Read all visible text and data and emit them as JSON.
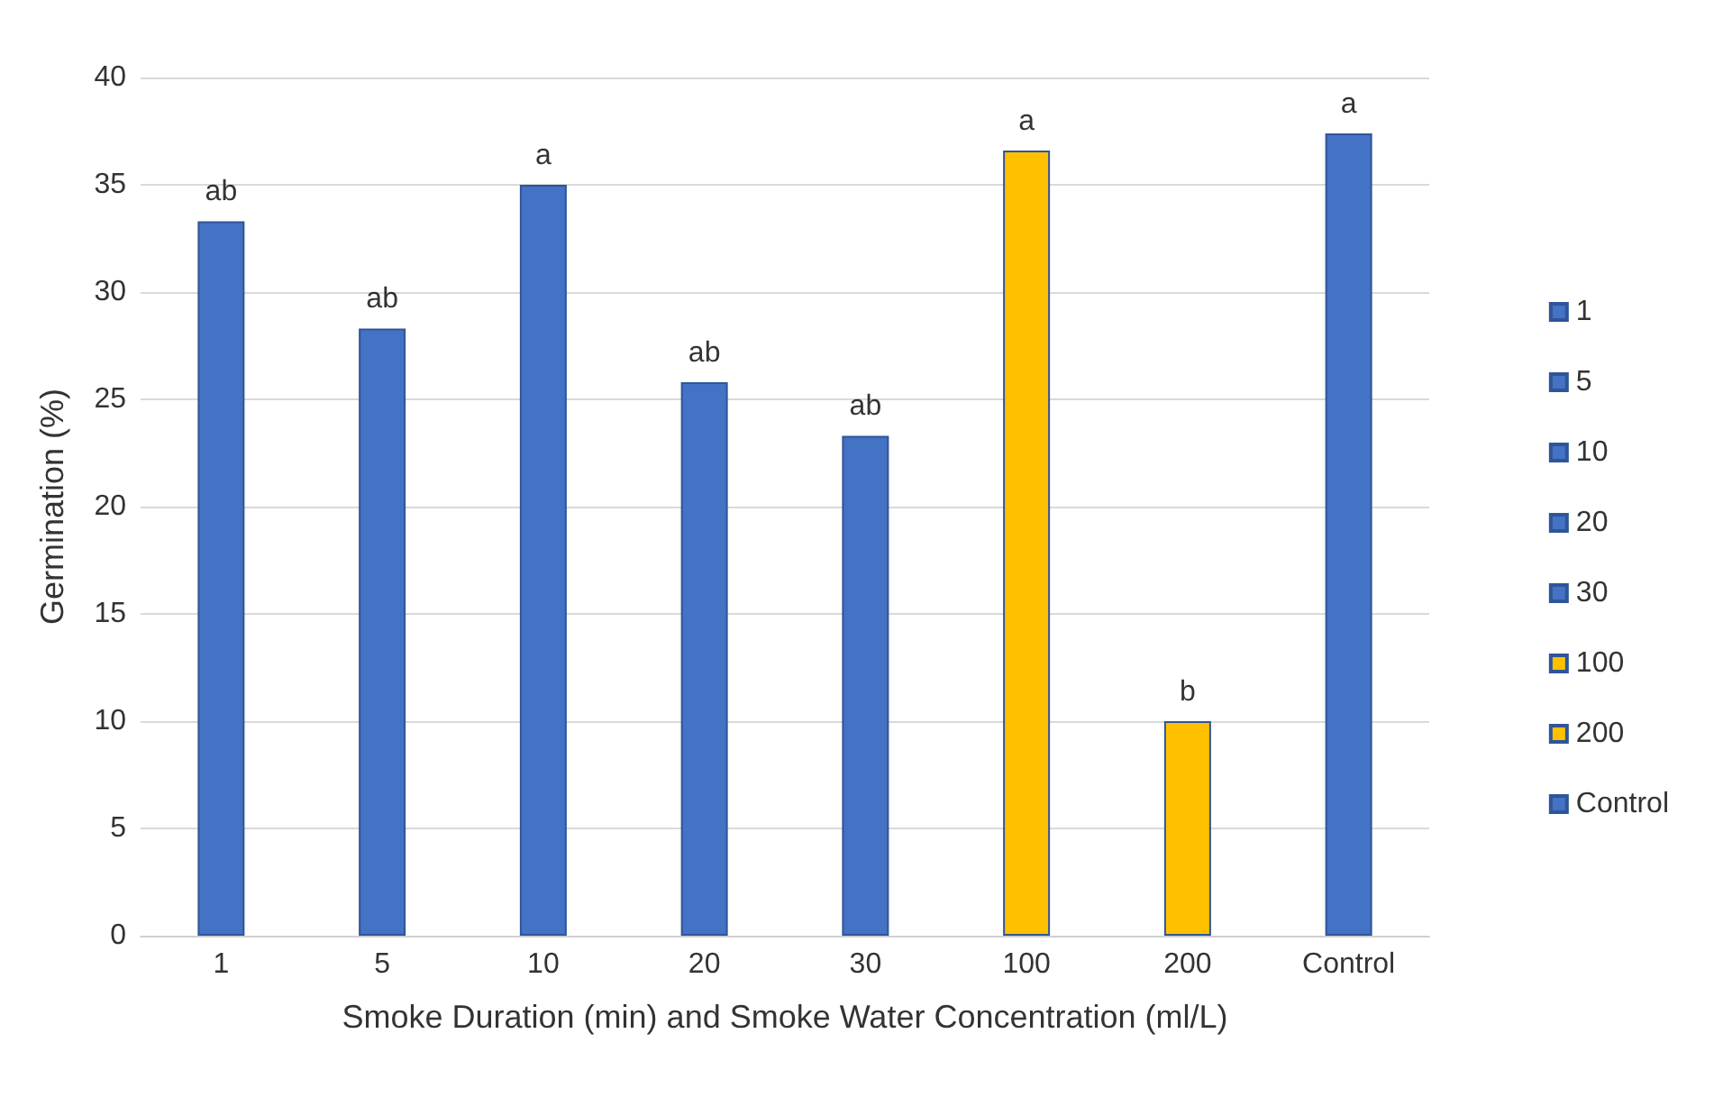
{
  "chart_data": {
    "type": "bar",
    "xlabel": "Smoke Duration (min) and Smoke Water Concentration (ml/L)",
    "ylabel": "Germination (%)",
    "categories": [
      "1",
      "5",
      "10",
      "20",
      "30",
      "100",
      "200",
      "Control"
    ],
    "series": [
      {
        "name": "1",
        "color": "#4472c4",
        "values": [
          33.3,
          null,
          null,
          null,
          null,
          null,
          null,
          null
        ]
      },
      {
        "name": "5",
        "color": "#4472c4",
        "values": [
          null,
          28.3,
          null,
          null,
          null,
          null,
          null,
          null
        ]
      },
      {
        "name": "10",
        "color": "#4472c4",
        "values": [
          null,
          null,
          35.0,
          null,
          null,
          null,
          null,
          null
        ]
      },
      {
        "name": "20",
        "color": "#4472c4",
        "values": [
          null,
          null,
          null,
          25.8,
          null,
          null,
          null,
          null
        ]
      },
      {
        "name": "30",
        "color": "#4472c4",
        "values": [
          null,
          null,
          null,
          null,
          23.3,
          null,
          null,
          null
        ]
      },
      {
        "name": "100",
        "color": "#ffc000",
        "values": [
          null,
          null,
          null,
          null,
          null,
          36.6,
          null,
          null
        ]
      },
      {
        "name": "200",
        "color": "#ffc000",
        "values": [
          null,
          null,
          null,
          null,
          null,
          null,
          10.0,
          null
        ]
      },
      {
        "name": "Control",
        "color": "#4472c4",
        "values": [
          null,
          null,
          null,
          null,
          null,
          null,
          null,
          37.4
        ]
      }
    ],
    "annotations": [
      {
        "text": "ab",
        "x": "1",
        "y": 33.3
      },
      {
        "text": "ab",
        "x": "5",
        "y": 28.3
      },
      {
        "text": "a",
        "x": "10",
        "y": 35.0
      },
      {
        "text": "ab",
        "x": "20",
        "y": 25.8
      },
      {
        "text": "ab",
        "x": "30",
        "y": 23.3
      },
      {
        "text": "a",
        "x": "100",
        "y": 36.6
      },
      {
        "text": "b",
        "x": "200",
        "y": 10.0
      },
      {
        "text": "a",
        "x": "Control",
        "y": 37.4
      }
    ],
    "ylim": [
      0,
      40
    ],
    "yticks": [
      0,
      5,
      10,
      15,
      20,
      25,
      30,
      35,
      40
    ],
    "grid": "y",
    "legend": "right"
  }
}
